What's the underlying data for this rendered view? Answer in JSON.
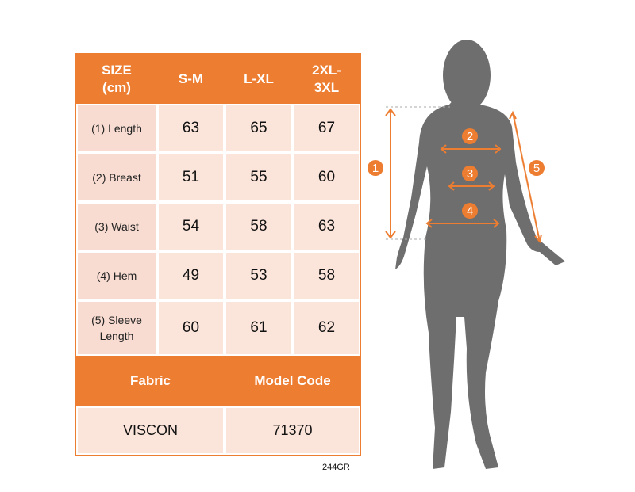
{
  "table": {
    "headers": [
      "SIZE\n(cm)",
      "S-M",
      "L-XL",
      "2XL-\n3XL"
    ],
    "rows": [
      {
        "label": "(1) Length",
        "values": [
          "63",
          "65",
          "67"
        ]
      },
      {
        "label": "(2) Breast",
        "values": [
          "51",
          "55",
          "60"
        ]
      },
      {
        "label": "(3) Waist",
        "values": [
          "54",
          "58",
          "63"
        ]
      },
      {
        "label": "(4) Hem",
        "values": [
          "49",
          "53",
          "58"
        ]
      },
      {
        "label": "(5) Sleeve\nLength",
        "values": [
          "60",
          "61",
          "62"
        ]
      }
    ],
    "footer_headers": [
      "Fabric",
      "Model Code"
    ],
    "footer_values": [
      "VISCON",
      "71370"
    ]
  },
  "product_code": "244GR",
  "figure": {
    "markers": [
      "1",
      "2",
      "3",
      "4",
      "5"
    ]
  },
  "colors": {
    "accent": "#ED7D31",
    "cell": "#FBE4DA",
    "silhouette": "#6E6E6E"
  }
}
